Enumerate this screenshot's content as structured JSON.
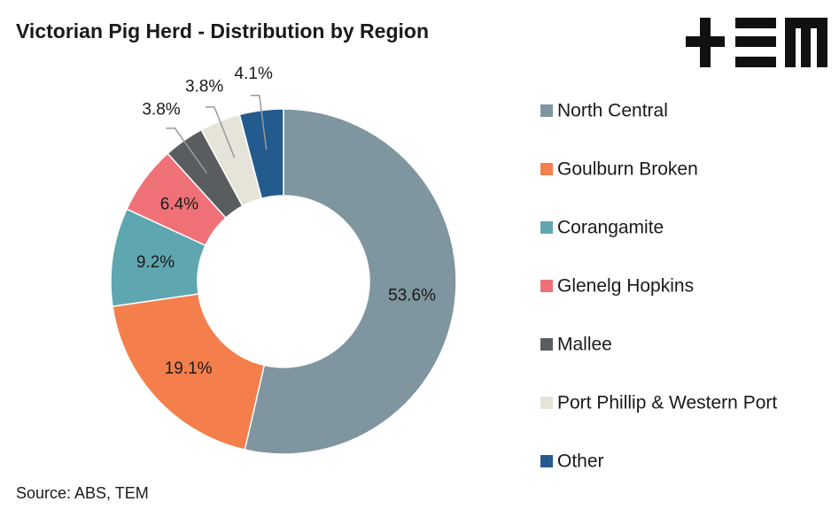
{
  "chart_data": {
    "type": "donut",
    "title": "Victorian Pig Herd - Distribution by Region",
    "source": "Source: ABS, TEM",
    "categories": [
      "North Central",
      "Goulburn Broken",
      "Corangamite",
      "Glenelg Hopkins",
      "Mallee",
      "Port Phillip & Western Port",
      "Other"
    ],
    "values": [
      53.6,
      19.1,
      9.2,
      6.4,
      3.8,
      3.8,
      4.1
    ],
    "value_labels": [
      "53.6%",
      "19.1%",
      "9.2%",
      "6.4%",
      "3.8%",
      "3.8%",
      "4.1%"
    ],
    "colors": [
      "#7f95a0",
      "#f47f4c",
      "#5fa7b0",
      "#f07078",
      "#595d60",
      "#e6e4d9",
      "#235b8f"
    ],
    "legend": "right"
  }
}
